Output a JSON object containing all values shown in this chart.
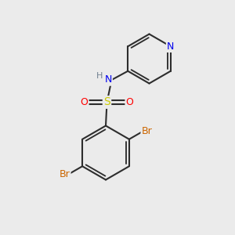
{
  "background_color": "#ebebeb",
  "figure_size": [
    3.0,
    3.0
  ],
  "dpi": 100,
  "bond_color": "#2d2d2d",
  "bond_lw": 1.5,
  "colors": {
    "N": "#0000ee",
    "O": "#ff0000",
    "S": "#cccc00",
    "Br": "#cc6600",
    "C": "#2d2d2d",
    "H": "#708090"
  },
  "font_size": 9
}
